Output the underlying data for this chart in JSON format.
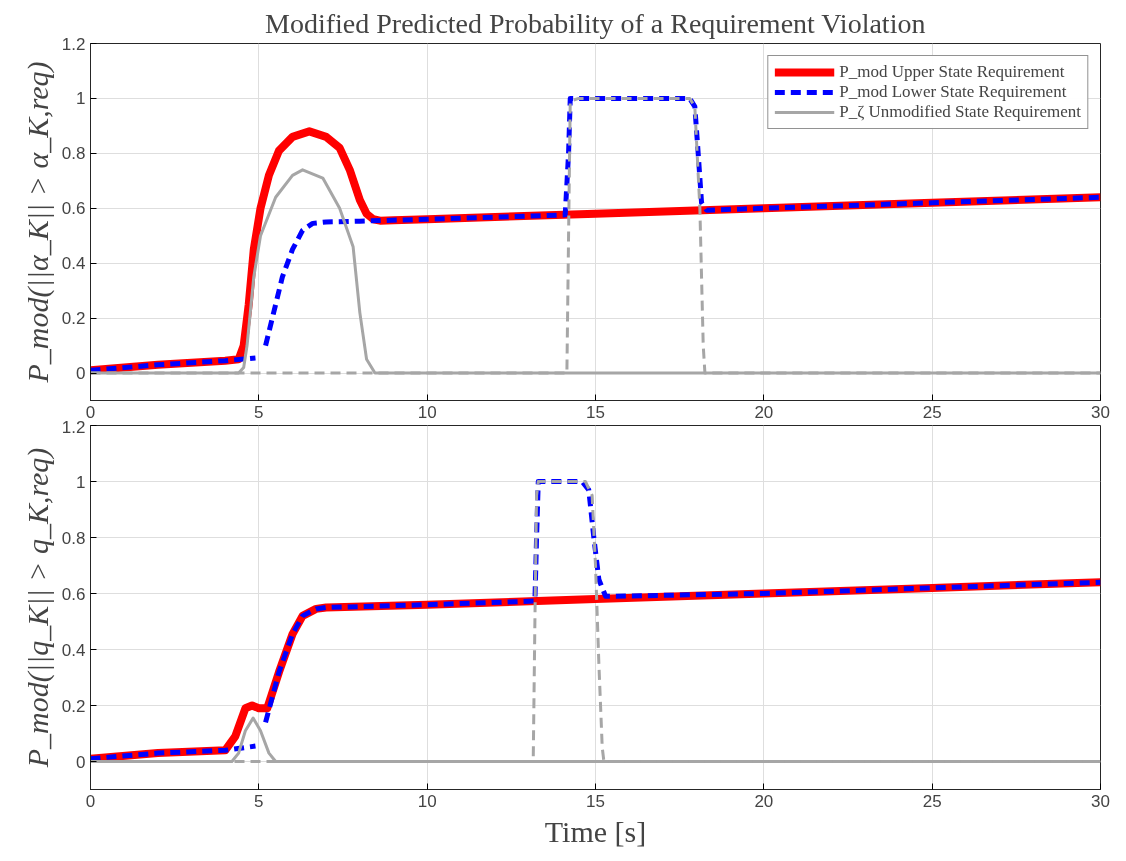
{
  "chart_data": [
    {
      "type": "line",
      "title": "Modified Predicted Probability of a Requirement Violation",
      "ylabel": "P_mod(||α_K|| > α_K,req)",
      "xlim": [
        0,
        30
      ],
      "ylim": [
        -0.1,
        1.2
      ],
      "xticks": [
        0,
        5,
        10,
        15,
        20,
        25,
        30
      ],
      "yticks": [
        0,
        0.2,
        0.4,
        0.6,
        0.8,
        1,
        1.2
      ],
      "grid": true,
      "legend": "top right",
      "series": [
        {
          "name": "P_mod Upper State Requirement",
          "color": "#ff0000",
          "line_style": "solid",
          "x": [
            0,
            2,
            4,
            4.4,
            4.55,
            4.7,
            4.85,
            5.05,
            5.3,
            5.6,
            6.0,
            6.5,
            7.0,
            7.4,
            7.7,
            8.0,
            8.2,
            8.4,
            8.6,
            9,
            10,
            15,
            20,
            25,
            30
          ],
          "values": [
            0.01,
            0.03,
            0.045,
            0.05,
            0.1,
            0.25,
            0.45,
            0.6,
            0.72,
            0.81,
            0.86,
            0.88,
            0.86,
            0.82,
            0.74,
            0.63,
            0.58,
            0.56,
            0.555,
            0.556,
            0.56,
            0.58,
            0.6,
            0.62,
            0.64
          ]
        },
        {
          "name": "P_mod Lower State Requirement",
          "color": "#0000ff",
          "line_style": "dashed",
          "x": [
            0,
            2,
            4,
            4.9,
            5.05,
            5.2,
            5.4,
            5.7,
            6.0,
            6.3,
            6.6,
            7.0,
            8,
            10,
            14.1,
            14.2,
            14.25,
            14.5,
            17,
            17.8,
            17.95,
            18.05,
            18.15,
            18.3,
            20,
            25,
            30
          ],
          "values": [
            0.01,
            0.03,
            0.045,
            0.055,
            null,
            0.1,
            0.2,
            0.35,
            0.45,
            0.52,
            0.545,
            0.55,
            0.553,
            0.56,
            0.576,
            0.8,
            1.0,
            1.0,
            1.0,
            1.0,
            0.97,
            0.8,
            0.62,
            0.593,
            0.6,
            0.62,
            0.64
          ]
        },
        {
          "name": "P_ζ Unmodified State Requirement",
          "color": "#a6a6a6",
          "line_style": "solid",
          "x": [
            0,
            4.4,
            4.55,
            4.65,
            4.85,
            5.05,
            5.5,
            6.0,
            6.3,
            6.9,
            7.4,
            7.8,
            8.0,
            8.2,
            8.45,
            10,
            30
          ],
          "values": [
            0,
            0,
            0.02,
            0.1,
            0.35,
            0.5,
            0.64,
            0.72,
            0.74,
            0.71,
            0.6,
            0.46,
            0.22,
            0.05,
            0,
            0,
            0
          ]
        },
        {
          "color": "#a6a6a6",
          "line_style": "dashed",
          "x": [
            0,
            14.15,
            14.2,
            14.25,
            14.5,
            17.8,
            17.95,
            18.1,
            18.2,
            18.25,
            30
          ],
          "values": [
            0,
            0,
            0.5,
            0.99,
            1,
            1,
            0.97,
            0.6,
            0.1,
            0,
            0
          ]
        }
      ]
    },
    {
      "type": "line",
      "xlabel": "Time [s]",
      "ylabel": "P_mod(||q_K|| > q_K,req)",
      "xlim": [
        0,
        30
      ],
      "ylim": [
        -0.1,
        1.2
      ],
      "xticks": [
        0,
        5,
        10,
        15,
        20,
        25,
        30
      ],
      "yticks": [
        0,
        0.2,
        0.4,
        0.6,
        0.8,
        1,
        1.2
      ],
      "grid": true,
      "series": [
        {
          "color": "#ff0000",
          "line_style": "solid",
          "x": [
            0,
            2,
            4,
            4.3,
            4.6,
            4.8,
            5.0,
            5.25,
            5.6,
            6.0,
            6.3,
            6.7,
            7,
            10,
            15,
            20,
            25,
            30
          ],
          "values": [
            0.01,
            0.03,
            0.04,
            0.09,
            0.19,
            0.2,
            0.19,
            0.19,
            0.32,
            0.455,
            0.52,
            0.545,
            0.55,
            0.56,
            0.58,
            0.6,
            0.62,
            0.64
          ]
        },
        {
          "color": "#0000ff",
          "line_style": "dashed",
          "x": [
            0,
            2,
            4,
            4.9,
            5.05,
            5.2,
            5.6,
            6.0,
            6.3,
            6.7,
            7,
            10,
            13.2,
            13.25,
            13.3,
            13.5,
            14.6,
            14.8,
            14.95,
            15.1,
            15.3,
            15.5,
            20,
            25,
            30
          ],
          "values": [
            0.01,
            0.03,
            0.04,
            0.055,
            null,
            0.14,
            0.32,
            0.455,
            0.52,
            0.545,
            0.55,
            0.56,
            0.573,
            0.8,
            1.0,
            1.0,
            1.0,
            0.97,
            0.8,
            0.65,
            0.59,
            0.59,
            0.6,
            0.62,
            0.64
          ]
        },
        {
          "color": "#a6a6a6",
          "line_style": "solid",
          "x": [
            0,
            4.2,
            4.4,
            4.6,
            4.83,
            5.05,
            5.3,
            5.5,
            30
          ],
          "values": [
            0,
            0,
            0.03,
            0.11,
            0.155,
            0.11,
            0.03,
            0,
            0
          ]
        },
        {
          "color": "#a6a6a6",
          "line_style": "dashed",
          "x": [
            0,
            13.15,
            13.2,
            13.25,
            13.3,
            14.7,
            14.9,
            15.0,
            15.1,
            15.2,
            15.25,
            30
          ],
          "values": [
            0,
            0,
            0.5,
            0.95,
            1,
            1,
            0.95,
            0.7,
            0.35,
            0.05,
            0,
            0
          ]
        }
      ]
    }
  ]
}
